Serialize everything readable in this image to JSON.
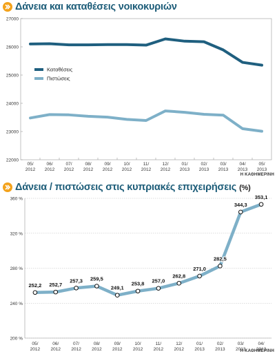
{
  "source_label": "Η ΚΑΘΗΜΕΡΙΝΗ",
  "colors": {
    "title": "#1c5c78",
    "dark_series": "#1f5f7f",
    "light_series": "#7eb0c8",
    "icon": "#f3a21b",
    "gridline": "#bbbbbb"
  },
  "chart_data": [
    {
      "type": "line",
      "title": "Δάνεια και καταθέσεις νοικοκυριών",
      "categories": [
        "05/\n2012",
        "06/\n2012",
        "07/\n2012",
        "08/\n2012",
        "09/\n2012",
        "10/\n2012",
        "11/\n2012",
        "12/\n2012",
        "01/\n2013",
        "02/\n2013",
        "03/\n2013",
        "04/\n2013",
        "05/\n2013"
      ],
      "ylim": [
        22000,
        27000
      ],
      "yticks": [
        22000,
        23000,
        24000,
        25000,
        26000,
        27000
      ],
      "ytick_labels": [
        "22000",
        "23000",
        "24000",
        "25000",
        "26000",
        "27000"
      ],
      "grid": false,
      "legend": "left",
      "series": [
        {
          "name": "Καταθέσεις",
          "color": "#1f5f7f",
          "values": [
            26100,
            26110,
            26070,
            26070,
            26080,
            26080,
            26060,
            26280,
            26200,
            26180,
            25890,
            25450,
            25350
          ]
        },
        {
          "name": "Πιστώσεις",
          "color": "#7eb0c8",
          "values": [
            23480,
            23600,
            23590,
            23540,
            23510,
            23430,
            23390,
            23730,
            23680,
            23610,
            23580,
            23100,
            23010
          ]
        }
      ]
    },
    {
      "type": "line",
      "title": "Δάνεια / πιστώσεις στις κυπριακές επιχειρήσεις",
      "unit": "(%)",
      "categories": [
        "05/\n2012",
        "06/\n2012",
        "07/\n2012",
        "08/\n2012",
        "09/\n2012",
        "10/\n2012",
        "11/\n2012",
        "12/\n2012",
        "01/\n2013",
        "02/\n2013",
        "03/\n2013",
        "04/\n2013"
      ],
      "ylim": [
        200,
        360
      ],
      "yticks": [
        200,
        240,
        280,
        320,
        360
      ],
      "ytick_labels": [
        "200 %",
        "240 %",
        "280 %",
        "320 %",
        "360 %"
      ],
      "grid": true,
      "series": [
        {
          "color": "#7eb0c8",
          "values": [
            252.2,
            252.7,
            257.3,
            259.5,
            249.1,
            253.8,
            257.0,
            262.8,
            271.0,
            282.5,
            344.3,
            353.1
          ],
          "labels": [
            "252,2",
            "252,7",
            "257,3",
            "259,5",
            "249,1",
            "253,8",
            "257,0",
            "262,8",
            "271,0",
            "282,5",
            "344,3",
            "353,1"
          ]
        }
      ]
    }
  ]
}
